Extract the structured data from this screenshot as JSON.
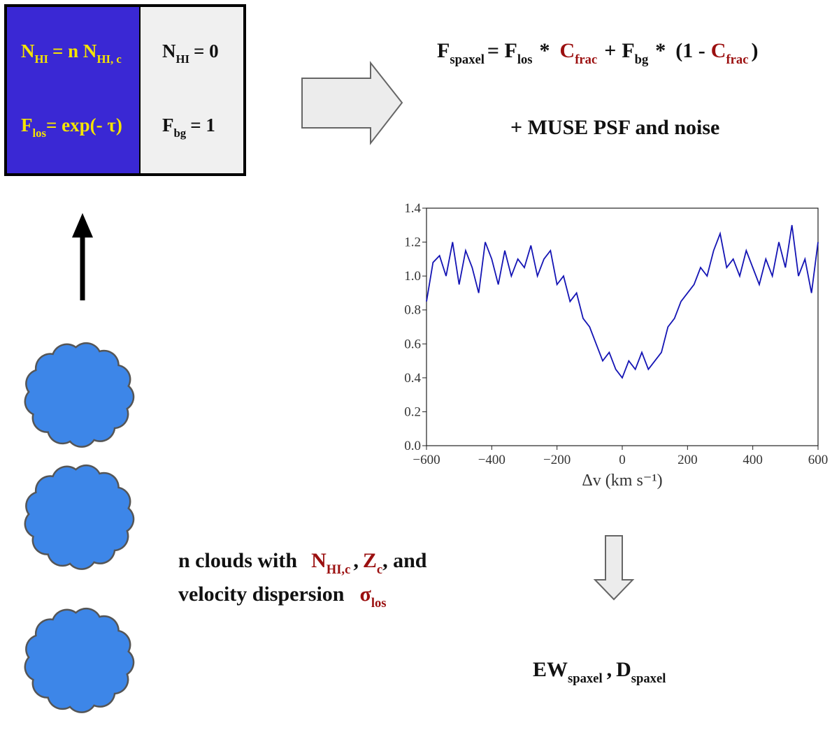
{
  "box": {
    "left": [
      [
        "N",
        "HI",
        "= n N",
        "HI, c"
      ],
      [
        "F",
        "los",
        "= exp(- τ)"
      ]
    ],
    "right": [
      [
        "N",
        "HI",
        "= 0"
      ],
      [
        "F",
        "bg",
        "= 1"
      ]
    ]
  },
  "equation": [
    "F",
    "spaxel",
    "= F",
    "los",
    "*",
    "C",
    "frac",
    "+",
    "F",
    "bg",
    "*",
    "(1 -",
    "C",
    "frac",
    ")"
  ],
  "extra": "+  MUSE PSF and noise",
  "clouds_caption": [
    "n clouds with",
    "N",
    "HI,c",
    ",",
    "Z",
    "c",
    ", and",
    "velocity dispersion",
    "σ",
    "los"
  ],
  "output": [
    "EW",
    "spaxel",
    ",",
    "D",
    "spaxel"
  ],
  "chart_data": {
    "type": "line",
    "xlabel": "Δv (km s⁻¹)",
    "x": [
      -600,
      -580,
      -560,
      -540,
      -520,
      -500,
      -480,
      -460,
      -440,
      -420,
      -400,
      -380,
      -360,
      -340,
      -320,
      -300,
      -280,
      -260,
      -240,
      -220,
      -200,
      -180,
      -160,
      -140,
      -120,
      -100,
      -80,
      -60,
      -40,
      -20,
      0,
      20,
      40,
      60,
      80,
      100,
      120,
      140,
      160,
      180,
      200,
      220,
      240,
      260,
      280,
      300,
      320,
      340,
      360,
      380,
      400,
      420,
      440,
      460,
      480,
      500,
      520,
      540,
      560,
      580,
      600
    ],
    "series": [
      {
        "color": "#1414b4",
        "values": [
          0.85,
          1.08,
          1.12,
          1.0,
          1.2,
          0.95,
          1.15,
          1.05,
          0.9,
          1.2,
          1.1,
          0.95,
          1.15,
          1.0,
          1.1,
          1.05,
          1.18,
          1.0,
          1.1,
          1.15,
          0.95,
          1.0,
          0.85,
          0.9,
          0.75,
          0.7,
          0.6,
          0.5,
          0.55,
          0.45,
          0.4,
          0.5,
          0.45,
          0.55,
          0.45,
          0.5,
          0.55,
          0.7,
          0.75,
          0.85,
          0.9,
          0.95,
          1.05,
          1.0,
          1.15,
          1.25,
          1.05,
          1.1,
          1.0,
          1.15,
          1.05,
          0.95,
          1.1,
          1.0,
          1.2,
          1.05,
          1.3,
          1.0,
          1.1,
          0.9,
          1.2
        ]
      }
    ],
    "xlim": [
      -600,
      600
    ],
    "ylim": [
      0,
      1.4
    ],
    "xticks": [
      {
        "value": -600,
        "label": "−600"
      },
      {
        "value": -400,
        "label": "−400"
      },
      {
        "value": -200,
        "label": "−200"
      },
      0,
      200,
      400,
      600
    ],
    "yticks": [
      {
        "value": 0,
        "label": "0.0"
      },
      {
        "value": 0.2,
        "label": "0.2"
      },
      {
        "value": 0.4,
        "label": "0.4"
      },
      {
        "value": 0.6,
        "label": "0.6"
      },
      {
        "value": 0.8,
        "label": "0.8"
      },
      {
        "value": 1,
        "label": "1.0"
      },
      {
        "value": 1.2,
        "label": "1.2"
      },
      {
        "value": 1.4,
        "label": "1.4"
      }
    ],
    "grid": false
  }
}
